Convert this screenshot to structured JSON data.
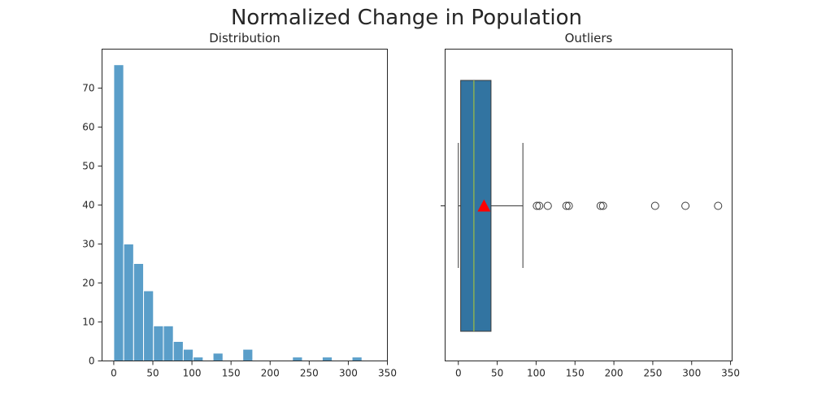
{
  "figure": {
    "title": "Normalized Change in Population"
  },
  "colors": {
    "bar": "#5a9ec9",
    "box": "#3274a1",
    "median": "#b5cc2e",
    "mean": "#ff0000",
    "axis": "#262626"
  },
  "chart_data": [
    {
      "type": "bar",
      "title": "Distribution",
      "xlabel": "",
      "ylabel": "",
      "xlim": [
        -15,
        350
      ],
      "ylim": [
        0,
        80
      ],
      "xticks": [
        0,
        50,
        100,
        150,
        200,
        250,
        300,
        350
      ],
      "yticks": [
        0,
        10,
        20,
        30,
        40,
        50,
        60,
        70
      ],
      "bin_width": 12.7,
      "bin_starts": [
        0,
        12.7,
        25.4,
        38.1,
        50.8,
        63.5,
        76.2,
        88.9,
        101.6,
        114.3,
        127.0,
        139.7,
        152.4,
        165.1,
        177.8,
        190.5,
        203.2,
        215.9,
        228.6,
        241.3,
        254.0,
        266.7,
        279.4,
        292.1,
        304.8,
        317.5
      ],
      "values": [
        76,
        30,
        25,
        18,
        9,
        9,
        5,
        3,
        1,
        0,
        2,
        0,
        0,
        3,
        0,
        0,
        0,
        0,
        1,
        0,
        0,
        1,
        0,
        0,
        1,
        0
      ],
      "grid": false
    },
    {
      "type": "box",
      "title": "Outliers",
      "xlabel": "",
      "ylabel": "",
      "xlim": [
        -17,
        352
      ],
      "xticks": [
        0,
        50,
        100,
        150,
        200,
        250,
        300,
        350
      ],
      "whisker_low": 0,
      "q1": 3,
      "median": 20,
      "q3": 42,
      "whisker_high": 83,
      "mean": 33,
      "outliers": [
        101,
        104,
        115,
        139,
        142,
        183,
        186,
        253,
        292,
        334
      ],
      "grid": false
    }
  ]
}
